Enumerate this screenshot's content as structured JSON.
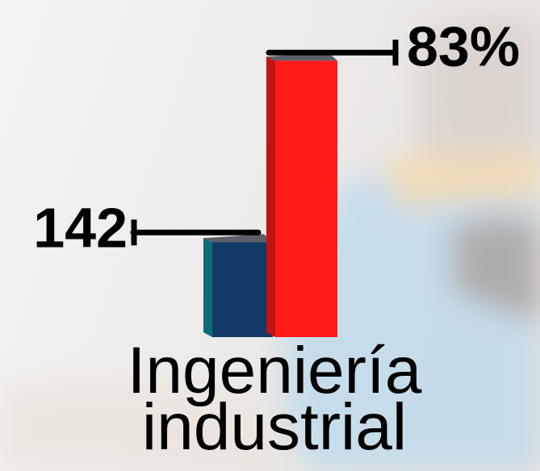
{
  "chart_data": {
    "type": "bar",
    "categories": [
      "Ingeniería industrial"
    ],
    "series": [
      {
        "color": "#133a66",
        "values": [
          142
        ]
      },
      {
        "color": "#ff1a1a",
        "values": [
          83
        ],
        "value_labels": [
          "83%"
        ]
      }
    ]
  }
}
